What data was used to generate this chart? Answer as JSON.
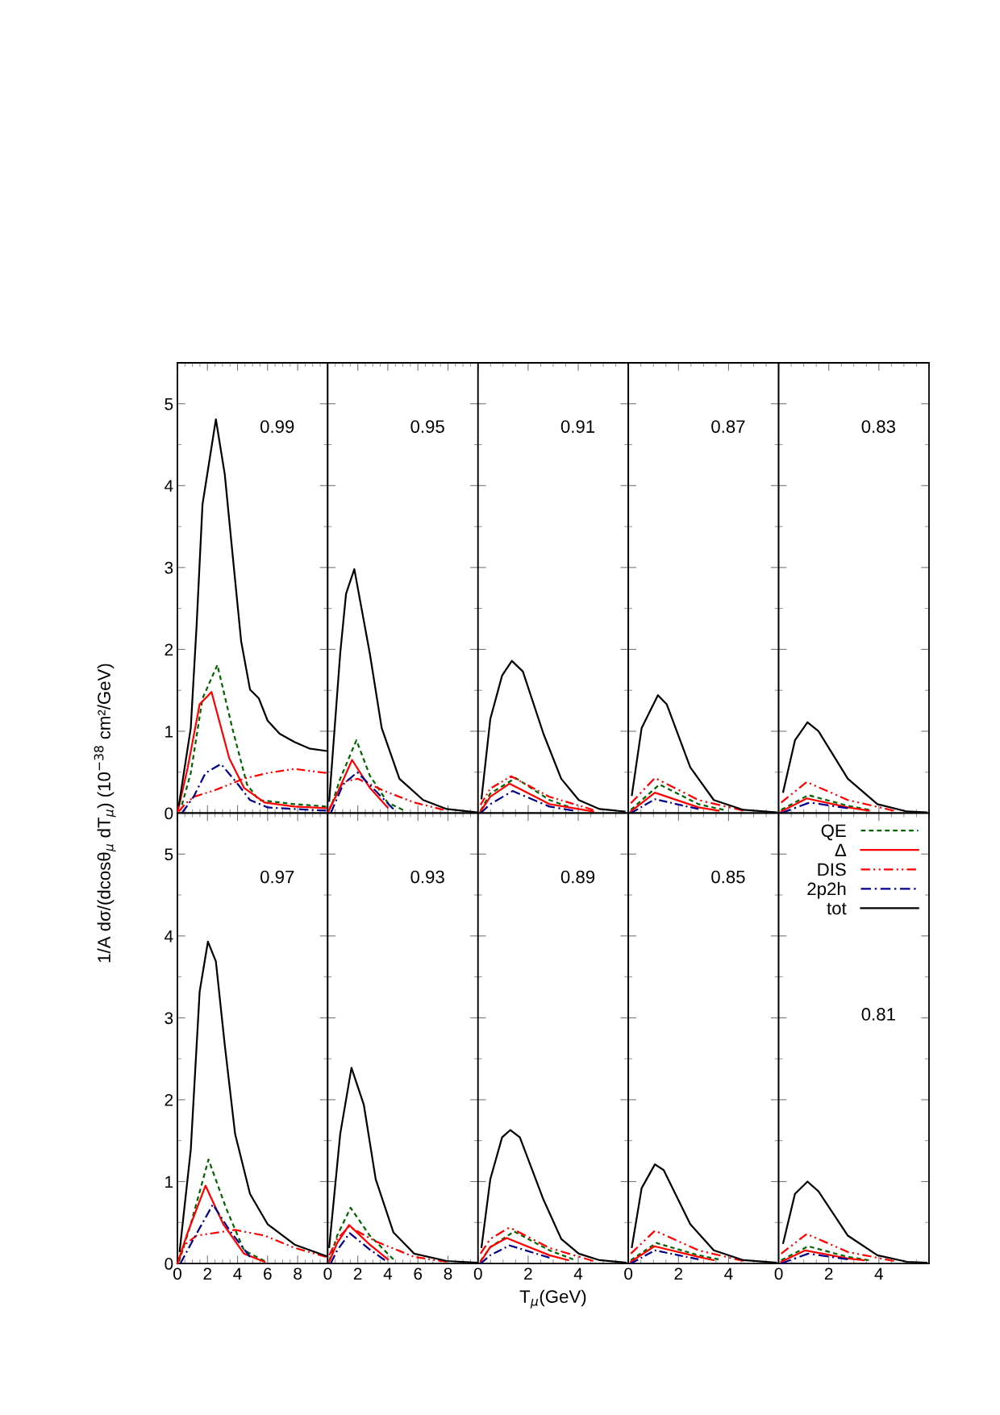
{
  "chart_data": [
    {
      "type": "line",
      "ylabel": "1/A dσ/(dcosθ$_{μ}$ dT$_{μ}$) (10$^{−38}$ cm²/GeV)",
      "annotations": [
        "0.99"
      ],
      "xlim": [
        0,
        10
      ],
      "xticks": [
        0,
        2,
        4,
        6,
        8
      ],
      "ylim": [
        0,
        5.5
      ],
      "yticks": [
        0,
        1,
        2,
        3,
        4,
        5
      ],
      "tick_labels": "y",
      "legend": false,
      "series": [
        {
          "color": "#006400",
          "line_style": "dashed",
          "x": [
            0.3,
            0.89,
            1.67,
            2.66,
            3.65,
            4.63,
            5.42,
            7.8,
            9.9
          ],
          "values": [
            0.1,
            0.49,
            1.4,
            1.81,
            1.04,
            0.35,
            0.16,
            0.11,
            0.08
          ]
        },
        {
          "color": "#ff0000",
          "line_style": "solid",
          "x": [
            0,
            0.69,
            1.48,
            2.27,
            3.45,
            4.43,
            5.8,
            7.8,
            9.9
          ],
          "values": [
            0,
            0.56,
            1.33,
            1.48,
            0.67,
            0.31,
            0.13,
            0.08,
            0.06
          ]
        },
        {
          "color": "#ff0000",
          "line_style": "dashdotdot",
          "x": [
            0.1,
            0.5,
            1.1,
            2.5,
            4.4,
            6.0,
            7.8,
            9.9
          ],
          "values": [
            0.02,
            0.11,
            0.2,
            0.28,
            0.42,
            0.49,
            0.54,
            0.49
          ]
        },
        {
          "color": "#00008b",
          "line_style": "dashdot",
          "x": [
            0.3,
            1.08,
            1.87,
            2.9,
            4.04,
            4.83,
            6.0,
            7.8,
            9.9
          ],
          "values": [
            0,
            0.2,
            0.49,
            0.6,
            0.35,
            0.16,
            0.07,
            0.05,
            0.03
          ]
        },
        {
          "color": "#000000",
          "line_style": "solid",
          "x": [
            0.1,
            0.89,
            1.28,
            1.67,
            2.56,
            3.15,
            3.65,
            4.24,
            4.83,
            5.42,
            6.0,
            6.8,
            7.78,
            8.77,
            9.9
          ],
          "values": [
            0.1,
            1.04,
            2.3,
            3.77,
            4.81,
            4.14,
            3.2,
            2.1,
            1.51,
            1.4,
            1.13,
            0.97,
            0.87,
            0.79,
            0.76
          ]
        }
      ]
    },
    {
      "type": "line",
      "annotations": [
        "0.95"
      ],
      "xlim": [
        0,
        10
      ],
      "xticks": [
        0,
        2,
        4,
        6,
        8
      ],
      "ylim": [
        0,
        5.5
      ],
      "yticks": [
        0,
        1,
        2,
        3,
        4,
        5
      ],
      "tick_labels": false,
      "legend": false,
      "series": [
        {
          "color": "#006400",
          "line_style": "dashed",
          "x": [
            0.3,
            0.83,
            1.91,
            2.8,
            3.98,
            5.0
          ],
          "values": [
            0.12,
            0.42,
            0.89,
            0.46,
            0.13,
            0.04
          ]
        },
        {
          "color": "#ff0000",
          "line_style": "solid",
          "x": [
            0,
            0.63,
            1.62,
            2.8,
            3.98
          ],
          "values": [
            0,
            0.24,
            0.65,
            0.31,
            0.07
          ]
        },
        {
          "color": "#ff0000",
          "line_style": "dashdotdot",
          "x": [
            0.1,
            1.02,
            2.0,
            3.78,
            5.75,
            7.7
          ],
          "values": [
            0.05,
            0.38,
            0.42,
            0.27,
            0.13,
            0.04
          ]
        },
        {
          "color": "#00008b",
          "line_style": "dashdot",
          "x": [
            0.2,
            1.02,
            1.97,
            3.19,
            4.37
          ],
          "values": [
            0,
            0.35,
            0.5,
            0.27,
            0.05
          ]
        },
        {
          "color": "#000000",
          "line_style": "solid",
          "x": [
            0.1,
            0.83,
            1.22,
            1.77,
            2.8,
            3.59,
            4.77,
            6.35,
            7.92,
            9.9
          ],
          "values": [
            0.15,
            1.95,
            2.68,
            2.98,
            1.95,
            1.04,
            0.42,
            0.16,
            0.05,
            0.01
          ]
        }
      ]
    },
    {
      "type": "line",
      "annotations": [
        "0.91"
      ],
      "xlim": [
        0,
        6
      ],
      "xticks": [
        0,
        2,
        4
      ],
      "ylim": [
        0,
        5.5
      ],
      "yticks": [
        0,
        1,
        2,
        3,
        4,
        5
      ],
      "tick_labels": false,
      "legend": false,
      "series": [
        {
          "color": "#006400",
          "line_style": "dashed",
          "x": [
            0.1,
            0.49,
            1.5,
            2.85,
            3.6
          ],
          "values": [
            0.03,
            0.24,
            0.43,
            0.16,
            0.08
          ]
        },
        {
          "color": "#ff0000",
          "line_style": "solid",
          "x": [
            0.1,
            0.49,
            1.26,
            2.85,
            4.6
          ],
          "values": [
            0.02,
            0.2,
            0.36,
            0.11,
            0.02
          ]
        },
        {
          "color": "#ff0000",
          "line_style": "dashdotdot",
          "x": [
            0.1,
            0.49,
            1.32,
            2.85,
            4.6
          ],
          "values": [
            0.1,
            0.3,
            0.45,
            0.2,
            0.04
          ]
        },
        {
          "color": "#00008b",
          "line_style": "dashdot",
          "x": [
            0.1,
            0.49,
            1.38,
            2.85,
            3.8
          ],
          "values": [
            0,
            0.11,
            0.27,
            0.08,
            0.03
          ]
        },
        {
          "color": "#000000",
          "line_style": "solid",
          "x": [
            0.14,
            0.49,
            0.96,
            1.35,
            1.79,
            2.61,
            3.32,
            4.02,
            4.85,
            5.85
          ],
          "values": [
            0.18,
            1.15,
            1.68,
            1.86,
            1.73,
            0.97,
            0.42,
            0.16,
            0.05,
            0.02
          ]
        }
      ]
    },
    {
      "type": "line",
      "annotations": [
        "0.87"
      ],
      "xlim": [
        0,
        6
      ],
      "xticks": [
        0,
        2,
        4
      ],
      "ylim": [
        0,
        5.5
      ],
      "yticks": [
        0,
        1,
        2,
        3,
        4,
        5
      ],
      "tick_labels": false,
      "legend": false,
      "series": [
        {
          "color": "#006400",
          "line_style": "dashed",
          "x": [
            0.1,
            1.24,
            2.8,
            3.8
          ],
          "values": [
            0.04,
            0.35,
            0.11,
            0.04
          ]
        },
        {
          "color": "#ff0000",
          "line_style": "solid",
          "x": [
            0.1,
            1.06,
            2.8,
            3.6
          ],
          "values": [
            0.02,
            0.25,
            0.07,
            0.03
          ]
        },
        {
          "color": "#ff0000",
          "line_style": "dashdotdot",
          "x": [
            0.1,
            1.06,
            2.8,
            4.6
          ],
          "values": [
            0.12,
            0.43,
            0.16,
            0.03
          ]
        },
        {
          "color": "#00008b",
          "line_style": "dashdot",
          "x": [
            0.1,
            1.06,
            2.8
          ],
          "values": [
            0,
            0.17,
            0.05
          ]
        },
        {
          "color": "#000000",
          "line_style": "solid",
          "x": [
            0.14,
            0.53,
            1.18,
            1.53,
            2.47,
            3.41,
            4.59,
            5.9
          ],
          "values": [
            0.22,
            1.04,
            1.44,
            1.33,
            0.56,
            0.16,
            0.04,
            0.01
          ]
        }
      ]
    },
    {
      "type": "line",
      "annotations": [
        "0.83"
      ],
      "xlim": [
        0,
        6
      ],
      "xticks": [
        0,
        2,
        4
      ],
      "ylim": [
        0,
        5.5
      ],
      "yticks": [
        0,
        1,
        2,
        3,
        4,
        5
      ],
      "tick_labels": false,
      "legend": false,
      "series": [
        {
          "color": "#006400",
          "line_style": "dashed",
          "x": [
            0.1,
            1.18,
            2.76,
            3.6
          ],
          "values": [
            0.04,
            0.22,
            0.09,
            0.04
          ]
        },
        {
          "color": "#ff0000",
          "line_style": "solid",
          "x": [
            0.1,
            1.12,
            2.76,
            3.6
          ],
          "values": [
            0.02,
            0.18,
            0.07,
            0.03
          ]
        },
        {
          "color": "#ff0000",
          "line_style": "dashdotdot",
          "x": [
            0.1,
            1.12,
            2.76,
            4.6
          ],
          "values": [
            0.13,
            0.38,
            0.16,
            0.03
          ]
        },
        {
          "color": "#00008b",
          "line_style": "dashdot",
          "x": [
            0.1,
            1.24,
            2.76
          ],
          "values": [
            0,
            0.13,
            0.06
          ]
        },
        {
          "color": "#000000",
          "line_style": "solid",
          "x": [
            0.18,
            0.65,
            1.15,
            1.59,
            2.76,
            3.94,
            5.12,
            5.9
          ],
          "values": [
            0.26,
            0.89,
            1.11,
            1.0,
            0.42,
            0.11,
            0.02,
            0.01
          ]
        }
      ]
    },
    {
      "type": "line",
      "annotations": [
        "0.97"
      ],
      "xlim": [
        0,
        10
      ],
      "xticks": [
        0,
        2,
        4,
        6,
        8
      ],
      "ylim": [
        0,
        5.5
      ],
      "yticks": [
        0,
        1,
        2,
        3,
        4,
        5
      ],
      "legend": false,
      "series": [
        {
          "color": "#006400",
          "line_style": "dashed",
          "x": [
            0.1,
            0.89,
            2.07,
            3.25,
            4.43,
            5.8
          ],
          "values": [
            0.02,
            0.48,
            1.27,
            0.67,
            0.16,
            0.03
          ]
        },
        {
          "color": "#ff0000",
          "line_style": "solid",
          "x": [
            0,
            0.69,
            1.87,
            3.05,
            4.43,
            5.8
          ],
          "values": [
            0,
            0.38,
            0.95,
            0.48,
            0.12,
            0.02
          ]
        },
        {
          "color": "#ff0000",
          "line_style": "dashdotdot",
          "x": [
            0.1,
            0.49,
            1.28,
            3.84,
            5.8,
            7.8,
            9.9
          ],
          "values": [
            0.05,
            0.23,
            0.34,
            0.41,
            0.34,
            0.19,
            0.08
          ]
        },
        {
          "color": "#00008b",
          "line_style": "dashdot",
          "x": [
            0.2,
            1.08,
            2.36,
            3.45,
            4.83
          ],
          "values": [
            0,
            0.3,
            0.72,
            0.41,
            0.08
          ]
        },
        {
          "color": "#000000",
          "line_style": "solid",
          "x": [
            0.15,
            0.89,
            1.48,
            2.03,
            2.56,
            3.15,
            3.84,
            4.83,
            6.0,
            7.8,
            9.9
          ],
          "values": [
            0.15,
            1.39,
            3.32,
            3.93,
            3.69,
            2.67,
            1.58,
            0.85,
            0.48,
            0.23,
            0.09
          ]
        }
      ]
    },
    {
      "type": "line",
      "annotations": [
        "0.93"
      ],
      "xlim": [
        0,
        10
      ],
      "xticks": [
        0,
        2,
        4,
        6,
        8
      ],
      "ylim": [
        0,
        5.5
      ],
      "yticks": [
        0,
        1,
        2,
        3,
        4,
        5
      ],
      "tick_labels": "x",
      "legend": false,
      "series": [
        {
          "color": "#006400",
          "line_style": "dashed",
          "x": [
            0.1,
            0.63,
            1.52,
            2.8,
            4.37
          ],
          "values": [
            0.03,
            0.34,
            0.68,
            0.34,
            0.05
          ]
        },
        {
          "color": "#ff0000",
          "line_style": "solid",
          "x": [
            0.1,
            0.63,
            1.42,
            2.8,
            4.0
          ],
          "values": [
            0.02,
            0.25,
            0.47,
            0.23,
            0.05
          ]
        },
        {
          "color": "#ff0000",
          "line_style": "dashdotdot",
          "x": [
            0.1,
            0.63,
            1.42,
            3.19,
            5.75,
            7.92
          ],
          "values": [
            0.1,
            0.3,
            0.45,
            0.27,
            0.08,
            0.02
          ]
        },
        {
          "color": "#00008b",
          "line_style": "dashdot",
          "x": [
            0.2,
            0.63,
            1.46,
            2.8,
            3.8
          ],
          "values": [
            0,
            0.16,
            0.37,
            0.17,
            0.04
          ]
        },
        {
          "color": "#000000",
          "line_style": "solid",
          "x": [
            0.1,
            0.83,
            1.58,
            2.4,
            3.19,
            4.37,
            5.75,
            7.92,
            9.9
          ],
          "values": [
            0.2,
            1.58,
            2.39,
            1.94,
            1.03,
            0.38,
            0.12,
            0.03,
            0.01
          ]
        }
      ]
    },
    {
      "type": "line",
      "xlabel": "T$_{μ}$(GeV)",
      "annotations": [
        "0.89"
      ],
      "xlim": [
        0,
        6
      ],
      "xticks": [
        0,
        2,
        4
      ],
      "ylim": [
        0,
        5.5
      ],
      "yticks": [
        0,
        1,
        2,
        3,
        4,
        5
      ],
      "tick_labels": "x",
      "legend": false,
      "series": [
        {
          "color": "#006400",
          "line_style": "dashed",
          "x": [
            0.1,
            0.49,
            1.44,
            2.85,
            3.8
          ],
          "values": [
            0.03,
            0.2,
            0.39,
            0.16,
            0.05
          ]
        },
        {
          "color": "#ff0000",
          "line_style": "solid",
          "x": [
            0.1,
            0.49,
            1.14,
            2.85,
            3.6
          ],
          "values": [
            0.02,
            0.2,
            0.31,
            0.1,
            0.04
          ]
        },
        {
          "color": "#ff0000",
          "line_style": "dashdotdot",
          "x": [
            0.1,
            0.49,
            1.26,
            2.85,
            4.6
          ],
          "values": [
            0.12,
            0.3,
            0.44,
            0.19,
            0.03
          ]
        },
        {
          "color": "#00008b",
          "line_style": "dashdot",
          "x": [
            0.1,
            0.49,
            1.26,
            2.85
          ],
          "values": [
            0,
            0.1,
            0.22,
            0.07
          ]
        },
        {
          "color": "#000000",
          "line_style": "solid",
          "x": [
            0.14,
            0.49,
            0.96,
            1.29,
            1.67,
            2.61,
            3.32,
            4.02,
            4.85,
            5.9
          ],
          "values": [
            0.2,
            1.03,
            1.54,
            1.63,
            1.54,
            0.78,
            0.3,
            0.12,
            0.04,
            0.01
          ]
        }
      ]
    },
    {
      "type": "line",
      "annotations": [
        "0.85"
      ],
      "xlim": [
        0,
        6
      ],
      "xticks": [
        0,
        2,
        4
      ],
      "ylim": [
        0,
        5.5
      ],
      "yticks": [
        0,
        1,
        2,
        3,
        4,
        5
      ],
      "tick_labels": "x",
      "legend": false,
      "series": [
        {
          "color": "#006400",
          "line_style": "dashed",
          "x": [
            0.1,
            1.12,
            2.8,
            3.6
          ],
          "values": [
            0.04,
            0.25,
            0.1,
            0.05
          ]
        },
        {
          "color": "#ff0000",
          "line_style": "solid",
          "x": [
            0.1,
            1.04,
            2.8,
            3.4
          ],
          "values": [
            0.02,
            0.21,
            0.08,
            0.04
          ]
        },
        {
          "color": "#ff0000",
          "line_style": "dashdotdot",
          "x": [
            0.1,
            1.06,
            2.8,
            4.6
          ],
          "values": [
            0.12,
            0.4,
            0.16,
            0.03
          ]
        },
        {
          "color": "#00008b",
          "line_style": "dashdot",
          "x": [
            0.1,
            1.06,
            2.8
          ],
          "values": [
            0,
            0.16,
            0.05
          ]
        },
        {
          "color": "#000000",
          "line_style": "solid",
          "x": [
            0.14,
            0.53,
            1.06,
            1.41,
            2.47,
            3.41,
            4.59,
            5.9
          ],
          "values": [
            0.2,
            0.92,
            1.21,
            1.14,
            0.48,
            0.16,
            0.04,
            0.01
          ]
        }
      ]
    },
    {
      "type": "line",
      "annotations": [
        "0.81"
      ],
      "xlim": [
        0,
        6
      ],
      "xticks": [
        0,
        2,
        4
      ],
      "ylim": [
        0,
        5.5
      ],
      "yticks": [
        0,
        1,
        2,
        3,
        4,
        5
      ],
      "tick_labels": "x",
      "legend": "top right",
      "series": [
        {
          "name": "QE",
          "color": "#006400",
          "line_style": "dashed",
          "x": [
            0.1,
            1.18,
            2.76,
            3.6
          ],
          "values": [
            0.04,
            0.21,
            0.08,
            0.04
          ]
        },
        {
          "name": "Δ",
          "color": "#ff0000",
          "line_style": "solid",
          "x": [
            0.1,
            1.06,
            2.76,
            3.4
          ],
          "values": [
            0.02,
            0.16,
            0.06,
            0.04
          ]
        },
        {
          "name": "DIS",
          "color": "#ff0000",
          "line_style": "dashdotdot",
          "x": [
            0.1,
            1.12,
            2.76,
            4.6
          ],
          "values": [
            0.12,
            0.36,
            0.14,
            0.03
          ]
        },
        {
          "name": "2p2h",
          "color": "#00008b",
          "line_style": "dashdot",
          "x": [
            0.1,
            1.18,
            2.76
          ],
          "values": [
            0,
            0.12,
            0.05
          ]
        },
        {
          "name": "tot",
          "color": "#000000",
          "line_style": "solid",
          "x": [
            0.18,
            0.65,
            1.15,
            1.59,
            2.76,
            3.94,
            5.12,
            5.9
          ],
          "values": [
            0.25,
            0.85,
            1.0,
            0.88,
            0.34,
            0.1,
            0.02,
            0.01
          ]
        }
      ]
    }
  ]
}
